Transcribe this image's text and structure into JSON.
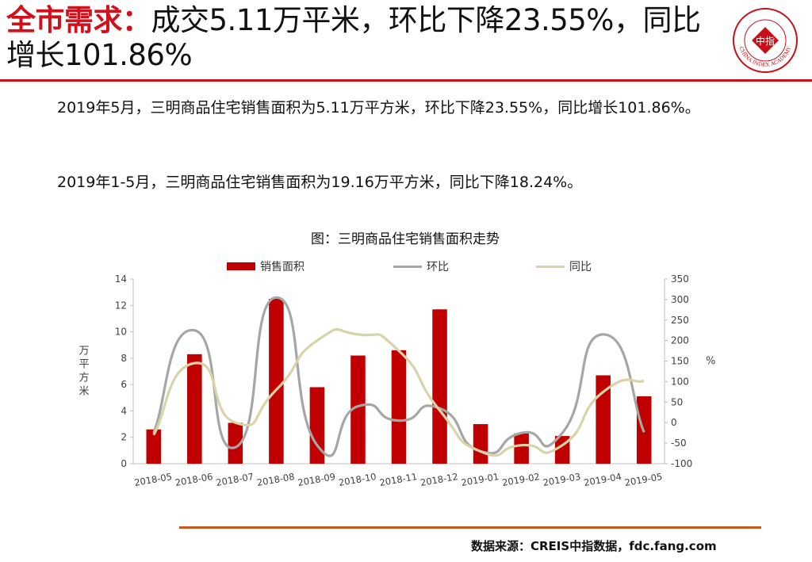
{
  "header": {
    "title_accent": "全市需求：",
    "title_rest": "成交5.11万平米，环比下降23.55%，同比增长101.86%",
    "logo_text": "CHINA INDEX ACADEMY",
    "logo_center": "中指"
  },
  "paragraphs": [
    "2019年5月，三明商品住宅销售面积为5.11万平方米，环比下降23.55%，同比增长101.86%。",
    "2019年1-5月，三明商品住宅销售面积为19.16万平方米，同比下降18.24%。"
  ],
  "colors": {
    "accent": "#d0101b",
    "bar": "#c00000",
    "mom_line": "#a6a6a6",
    "yoy_line": "#d9d3a8",
    "rule_bottom": "#c65a1e"
  },
  "chart_data": {
    "type": "bar",
    "title": "图：三明商品住宅销售面积走势",
    "categories": [
      "2018-05",
      "2018-06",
      "2018-07",
      "2018-08",
      "2018-09",
      "2018-10",
      "2018-11",
      "2018-12",
      "2019-01",
      "2019-02",
      "2019-03",
      "2019-04",
      "2019-05"
    ],
    "ylabel": "万平方米",
    "y2label": "%",
    "ylim": [
      0,
      14
    ],
    "y2lim": [
      -100,
      350
    ],
    "yticks": [
      "0",
      "2",
      "4",
      "6",
      "8",
      "10",
      "12",
      "14"
    ],
    "y2ticks": [
      "-100",
      "-50",
      "0",
      "50",
      "100",
      "150",
      "200",
      "250",
      "300",
      "350"
    ],
    "legend_position": "top",
    "grid": false,
    "series": [
      {
        "name": "销售面积",
        "kind": "bar",
        "axis": "left",
        "values": [
          2.6,
          8.3,
          3.1,
          12.5,
          5.8,
          8.2,
          8.6,
          11.7,
          3.0,
          2.3,
          2.1,
          6.7,
          5.11
        ]
      },
      {
        "name": "环比",
        "kind": "line",
        "axis": "right",
        "values": [
          -25,
          225,
          -60,
          305,
          -55,
          40,
          5,
          35,
          -70,
          -25,
          -25,
          215,
          -23.55
        ]
      },
      {
        "name": "同比",
        "kind": "line",
        "axis": "right",
        "values": [
          -30,
          145,
          0,
          80,
          200,
          215,
          175,
          30,
          -70,
          -55,
          -55,
          75,
          101.86
        ]
      }
    ]
  },
  "footer": {
    "source": "数据来源：CREIS中指数据，fdc.fang.com"
  }
}
